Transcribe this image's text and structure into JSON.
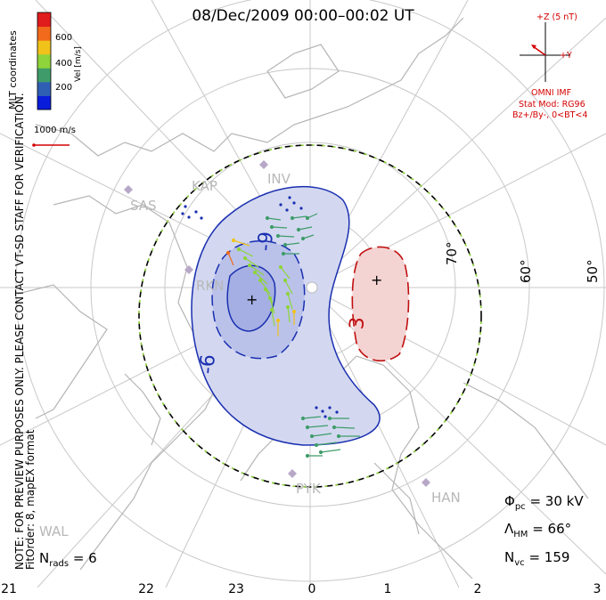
{
  "title": "08/Dec/2009 00:00–00:02 UT",
  "imf": {
    "axis_z": "+Z (5 nT)",
    "axis_y": "+Y",
    "source": "OMNI IMF",
    "model": "Stat Mod: RG96",
    "condition": "Bz+/By-, 0<BT<4"
  },
  "colorbar": {
    "title": "Vel [m/s]",
    "ticks": [
      "600",
      "400",
      "200"
    ],
    "colors": [
      "#0a1cdb",
      "#2f5fb3",
      "#3f9c6a",
      "#8fd43a",
      "#f1c21a",
      "#f26a1b",
      "#e01c1c"
    ]
  },
  "velocity_scale": "1000 m/s",
  "coords_label": "MLT coordinates",
  "note_line1": "NOTE: FOR PREVIEW PURPOSES ONLY. PLEASE CONTACT VT-SD STAFF FOR VERIFICATION.",
  "note_line2": "FitOrder: 8,  mapEX format",
  "latitude_labels": [
    "70°",
    "60°",
    "50°"
  ],
  "contour_labels": [
    "-9",
    "-6",
    "3"
  ],
  "stations": [
    "SAS",
    "KAP",
    "INV",
    "RKN",
    "PYK",
    "HAN",
    "WAL"
  ],
  "stats": {
    "phi_pc": "= 30 kV",
    "lambda_hm": "= 66°",
    "n_vc": "= 159",
    "n_rads": "= 6"
  },
  "mlt_ticks": [
    "21",
    "22",
    "23",
    "0",
    "1",
    "2",
    "3"
  ],
  "colors": {
    "negative_fill": "#d3d8f0",
    "negative_line": "#1a2fb0",
    "positive_fill": "#f4d3d3",
    "positive_line": "#c01010",
    "coast": "#b5b5b5",
    "grid": "#c8c8c8",
    "boundary_dash": "#88cc33"
  }
}
